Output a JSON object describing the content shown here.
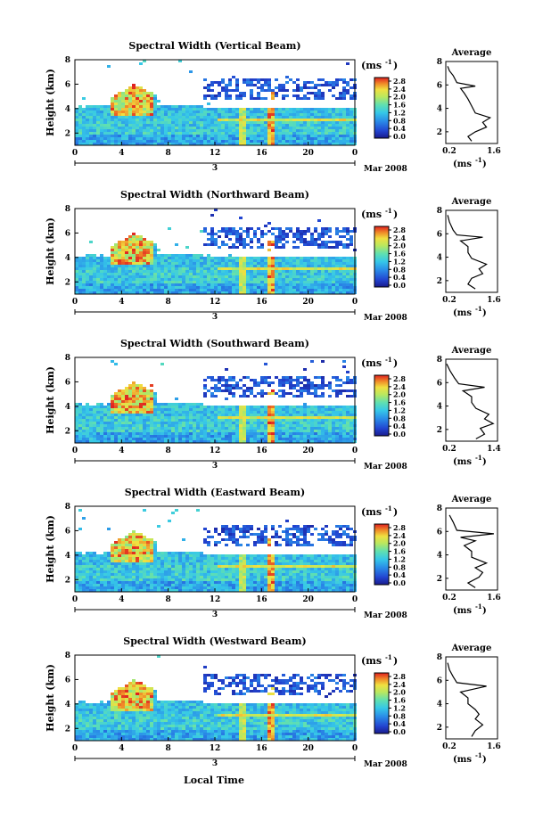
{
  "figure": {
    "bottom_xlabel": "Local Time",
    "colorbar_unit": "(ms",
    "colorbar_unit_exp": "-1",
    "colorbar_unit_close": ")",
    "colorbar_ticks": [
      "2.8",
      "2.4",
      "2.0",
      "1.6",
      "1.2",
      "0.8",
      "0.4",
      "0.0"
    ],
    "avg_title": "Average",
    "avg_xunit": "(ms",
    "avg_xunit_exp": "-1",
    "avg_xunit_close": ")",
    "colors": {
      "low": "#1a1aa0",
      "mid": "#2fb8e0",
      "high": "#e83020",
      "background": "#ffffff"
    }
  },
  "chart_data": [
    {
      "type": "heatmap",
      "title": "Spectral Width (Vertical Beam)",
      "ylabel": "Height (km)",
      "y_ticks": [
        "2",
        "4",
        "6",
        "8"
      ],
      "x_ticks": [
        "0",
        "4",
        "8",
        "12",
        "16",
        "20",
        "0"
      ],
      "date_day": "3",
      "date_month_year": "Mar 2008",
      "xlim": [
        0,
        24
      ],
      "ylim": [
        1,
        8
      ],
      "colorbar_range": [
        0.0,
        2.8
      ],
      "average_profile": {
        "type": "line",
        "title": "Average",
        "xlim": [
          0.2,
          1.6
        ],
        "x_ticks": [
          "0.2",
          "1.6"
        ],
        "y_ticks": [
          "2",
          "4",
          "6",
          "8"
        ],
        "ylim": [
          1,
          8
        ],
        "points": [
          [
            0.9,
            1.2
          ],
          [
            0.8,
            1.6
          ],
          [
            1.0,
            2.0
          ],
          [
            1.3,
            2.4
          ],
          [
            1.2,
            2.8
          ],
          [
            1.4,
            3.2
          ],
          [
            1.0,
            3.6
          ],
          [
            0.9,
            4.2
          ],
          [
            0.8,
            4.8
          ],
          [
            0.7,
            5.3
          ],
          [
            0.6,
            5.7
          ],
          [
            1.0,
            5.9
          ],
          [
            0.5,
            6.2
          ],
          [
            0.4,
            6.8
          ],
          [
            0.3,
            7.2
          ],
          [
            0.25,
            7.6
          ]
        ]
      }
    },
    {
      "type": "heatmap",
      "title": "Spectral Width (Northward Beam)",
      "ylabel": "Height (km)",
      "y_ticks": [
        "2",
        "4",
        "6",
        "8"
      ],
      "x_ticks": [
        "0",
        "4",
        "8",
        "12",
        "16",
        "20",
        "0"
      ],
      "date_day": "3",
      "date_month_year": "Mar 2008",
      "xlim": [
        0,
        24
      ],
      "ylim": [
        1,
        8
      ],
      "colorbar_range": [
        0.0,
        2.8
      ],
      "average_profile": {
        "type": "line",
        "title": "Average",
        "xlim": [
          0.2,
          1.6
        ],
        "x_ticks": [
          "0.2",
          "1.6"
        ],
        "y_ticks": [
          "2",
          "4",
          "6",
          "8"
        ],
        "ylim": [
          1,
          8
        ],
        "points": [
          [
            1.0,
            1.3
          ],
          [
            0.8,
            1.7
          ],
          [
            0.9,
            2.2
          ],
          [
            1.2,
            2.6
          ],
          [
            1.1,
            3.0
          ],
          [
            1.3,
            3.4
          ],
          [
            0.9,
            3.9
          ],
          [
            0.8,
            4.4
          ],
          [
            0.8,
            4.9
          ],
          [
            0.6,
            5.4
          ],
          [
            1.2,
            5.7
          ],
          [
            0.5,
            5.9
          ],
          [
            0.4,
            6.3
          ],
          [
            0.3,
            7.0
          ],
          [
            0.25,
            7.6
          ]
        ]
      }
    },
    {
      "type": "heatmap",
      "title": "Spectral Width (Southward Beam)",
      "ylabel": "Height (km)",
      "y_ticks": [
        "2",
        "4",
        "6",
        "8"
      ],
      "x_ticks": [
        "0",
        "4",
        "8",
        "12",
        "16",
        "20",
        "0"
      ],
      "date_day": "3",
      "date_month_year": "Mar 2008",
      "xlim": [
        0,
        24
      ],
      "ylim": [
        1,
        8
      ],
      "colorbar_range": [
        0.0,
        2.8
      ],
      "average_profile": {
        "type": "line",
        "title": "Average",
        "xlim": [
          0.2,
          1.4
        ],
        "x_ticks": [
          "0.2",
          "1.4"
        ],
        "y_ticks": [
          "2",
          "4",
          "6",
          "8"
        ],
        "ylim": [
          1,
          8
        ],
        "points": [
          [
            0.9,
            1.2
          ],
          [
            1.1,
            1.6
          ],
          [
            1.0,
            2.1
          ],
          [
            1.3,
            2.5
          ],
          [
            1.1,
            2.9
          ],
          [
            1.2,
            3.3
          ],
          [
            0.9,
            3.8
          ],
          [
            0.8,
            4.3
          ],
          [
            0.8,
            4.8
          ],
          [
            0.6,
            5.3
          ],
          [
            1.1,
            5.6
          ],
          [
            0.5,
            5.9
          ],
          [
            0.4,
            6.4
          ],
          [
            0.3,
            7.0
          ],
          [
            0.22,
            7.6
          ]
        ]
      }
    },
    {
      "type": "heatmap",
      "title": "Spectral Width (Eastward Beam)",
      "ylabel": "Height (km)",
      "y_ticks": [
        "2",
        "4",
        "6",
        "8"
      ],
      "x_ticks": [
        "0",
        "4",
        "8",
        "12",
        "16",
        "20",
        "0"
      ],
      "date_day": "3",
      "date_month_year": "Mar 2008",
      "xlim": [
        0,
        24
      ],
      "ylim": [
        1,
        8
      ],
      "colorbar_range": [
        0.0,
        2.8
      ],
      "average_profile": {
        "type": "line",
        "title": "Average",
        "xlim": [
          0.2,
          1.6
        ],
        "x_ticks": [
          "0.2",
          "1.6"
        ],
        "y_ticks": [
          "2",
          "4",
          "6",
          "8"
        ],
        "ylim": [
          1,
          8
        ],
        "points": [
          [
            1.0,
            1.2
          ],
          [
            0.8,
            1.6
          ],
          [
            1.1,
            2.1
          ],
          [
            1.2,
            2.5
          ],
          [
            1.0,
            2.9
          ],
          [
            1.3,
            3.3
          ],
          [
            0.9,
            3.8
          ],
          [
            0.9,
            4.3
          ],
          [
            0.7,
            4.8
          ],
          [
            1.0,
            5.2
          ],
          [
            0.6,
            5.5
          ],
          [
            1.5,
            5.8
          ],
          [
            0.5,
            6.1
          ],
          [
            0.4,
            6.8
          ],
          [
            0.3,
            7.4
          ]
        ]
      }
    },
    {
      "type": "heatmap",
      "title": "Spectral Width (Westward Beam)",
      "ylabel": "Height (km)",
      "y_ticks": [
        "2",
        "4",
        "6",
        "8"
      ],
      "x_ticks": [
        "0",
        "4",
        "8",
        "12",
        "16",
        "20",
        "0"
      ],
      "date_day": "3",
      "date_month_year": "Mar 2008",
      "xlim": [
        0,
        24
      ],
      "ylim": [
        1,
        8
      ],
      "colorbar_range": [
        0.0,
        2.8
      ],
      "average_profile": {
        "type": "line",
        "title": "Average",
        "xlim": [
          0.2,
          1.6
        ],
        "x_ticks": [
          "0.2",
          "1.6"
        ],
        "y_ticks": [
          "2",
          "4",
          "6",
          "8"
        ],
        "ylim": [
          1,
          8
        ],
        "points": [
          [
            0.9,
            1.2
          ],
          [
            1.0,
            1.7
          ],
          [
            1.2,
            2.2
          ],
          [
            1.0,
            2.7
          ],
          [
            1.1,
            3.1
          ],
          [
            1.0,
            3.5
          ],
          [
            0.8,
            4.0
          ],
          [
            0.8,
            4.5
          ],
          [
            0.6,
            5.0
          ],
          [
            1.3,
            5.5
          ],
          [
            0.5,
            5.8
          ],
          [
            0.4,
            6.3
          ],
          [
            0.3,
            6.9
          ],
          [
            0.25,
            7.5
          ]
        ]
      }
    }
  ]
}
